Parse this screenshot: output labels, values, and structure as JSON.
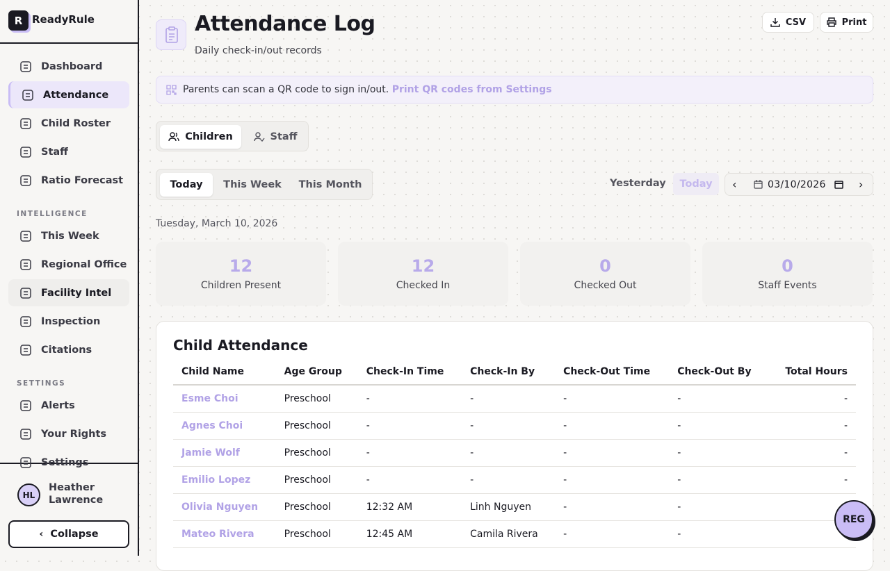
{
  "sidebar": {
    "brand_mark": "R",
    "brand": "ReadyRule",
    "main_nav": [
      "Dashboard",
      "Attendance",
      "Child Roster",
      "Staff",
      "Ratio Forecast"
    ],
    "intelligence": {
      "heading": "INTELLIGENCE",
      "items": [
        "This Week",
        "Regional Office",
        "Facility Intel",
        "Inspection",
        "Citations"
      ]
    },
    "settings": {
      "heading": "SETTINGS",
      "items": [
        "Alerts",
        "Your Rights",
        "Settings"
      ]
    },
    "user": {
      "initials": "HL",
      "name": "Heather Lawrence"
    },
    "collapse": "Collapse"
  },
  "header": {
    "title": "Attendance Log",
    "subtitle": "Daily check-in/out records",
    "buttons": [
      "CSV",
      "Print"
    ]
  },
  "banner": {
    "text": "Parents can scan a QR code to sign in/out.",
    "link": "Print QR codes from Settings"
  },
  "tabs": [
    "Children",
    "Staff"
  ],
  "ranges": [
    "Today",
    "This Week",
    "This Month"
  ],
  "date_nav": {
    "yesterday": "Yesterday",
    "today": "Today",
    "date": "03/10/2026"
  },
  "date_label": "Tuesday, March 10, 2026",
  "stats": [
    {
      "value": 12,
      "label": "Children Present"
    },
    {
      "value": 12,
      "label": "Checked In"
    },
    {
      "value": 0,
      "label": "Checked Out"
    },
    {
      "value": 0,
      "label": "Staff Events"
    }
  ],
  "table": {
    "title": "Child Attendance",
    "columns": [
      "Child Name",
      "Age Group",
      "Check-In Time",
      "Check-In By",
      "Check-Out Time",
      "Check-Out By",
      "Total Hours"
    ],
    "rows": [
      [
        "Esme Choi",
        "Preschool",
        "-",
        "-",
        "-",
        "-",
        "-"
      ],
      [
        "Agnes Choi",
        "Preschool",
        "-",
        "-",
        "-",
        "-",
        "-"
      ],
      [
        "Jamie Wolf",
        "Preschool",
        "-",
        "-",
        "-",
        "-",
        "-"
      ],
      [
        "Emilio Lopez",
        "Preschool",
        "-",
        "-",
        "-",
        "-",
        "-"
      ],
      [
        "Olivia Nguyen",
        "Preschool",
        "12:32 AM",
        "Linh Nguyen",
        "-",
        "-",
        ""
      ],
      [
        "Mateo Rivera",
        "Preschool",
        "12:45 AM",
        "Camila Rivera",
        "-",
        "-",
        ""
      ]
    ]
  },
  "fab": "REG"
}
